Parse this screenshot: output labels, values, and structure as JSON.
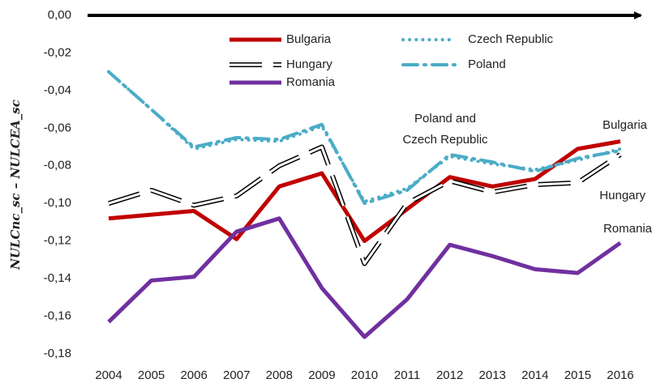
{
  "chart_data": {
    "type": "line",
    "y_label": "NULCnc_sc – NULCEA_sc",
    "categories": [
      "2004",
      "2005",
      "2006",
      "2007",
      "2008",
      "2009",
      "2010",
      "2011",
      "2012",
      "2013",
      "2014",
      "2015",
      "2016"
    ],
    "series": [
      {
        "name": "Bulgaria",
        "color": "#c00000",
        "style": "solid",
        "values": [
          -0.108,
          -0.106,
          -0.104,
          -0.119,
          -0.091,
          -0.084,
          -0.12,
          -0.103,
          -0.086,
          -0.091,
          -0.087,
          -0.071,
          -0.067
        ]
      },
      {
        "name": "Czech Republic",
        "color": "#4bacc6",
        "style": "dotted",
        "values": [
          -0.03,
          -0.05,
          -0.071,
          -0.066,
          -0.067,
          -0.059,
          -0.099,
          -0.092,
          -0.075,
          -0.079,
          -0.082,
          -0.077,
          -0.071
        ]
      },
      {
        "name": "Hungary",
        "color": "#000000",
        "style": "outline",
        "values": [
          -0.1,
          -0.093,
          -0.101,
          -0.096,
          -0.08,
          -0.07,
          -0.132,
          -0.1,
          -0.088,
          -0.094,
          -0.09,
          -0.089,
          -0.074
        ]
      },
      {
        "name": "Poland",
        "color": "#4bacc6",
        "style": "dashdot",
        "values": [
          -0.03,
          -0.05,
          -0.07,
          -0.065,
          -0.066,
          -0.058,
          -0.1,
          -0.093,
          -0.074,
          -0.078,
          -0.083,
          -0.076,
          -0.072
        ]
      },
      {
        "name": "Romania",
        "color": "#7030a0",
        "style": "solid",
        "values": [
          -0.163,
          -0.141,
          -0.139,
          -0.115,
          -0.108,
          -0.145,
          -0.171,
          -0.151,
          -0.122,
          -0.128,
          -0.135,
          -0.137,
          -0.121
        ]
      }
    ],
    "ylim": [
      -0.18,
      0
    ],
    "yticks": [
      {
        "value": 0,
        "label": "0,00"
      },
      {
        "value": -0.02,
        "label": "-0,02"
      },
      {
        "value": -0.04,
        "label": "-0,04"
      },
      {
        "value": -0.06,
        "label": "-0,06"
      },
      {
        "value": -0.08,
        "label": "-0,08"
      },
      {
        "value": -0.1,
        "label": "-0,10"
      },
      {
        "value": -0.12,
        "label": "-0,12"
      },
      {
        "value": -0.14,
        "label": "-0,14"
      },
      {
        "value": -0.16,
        "label": "-0,16"
      },
      {
        "value": -0.18,
        "label": "-0,18"
      }
    ],
    "annotations": [
      "Poland and",
      "Czech Republic",
      "Bulgaria",
      "Hungary",
      "Romania"
    ],
    "legend": "top"
  }
}
